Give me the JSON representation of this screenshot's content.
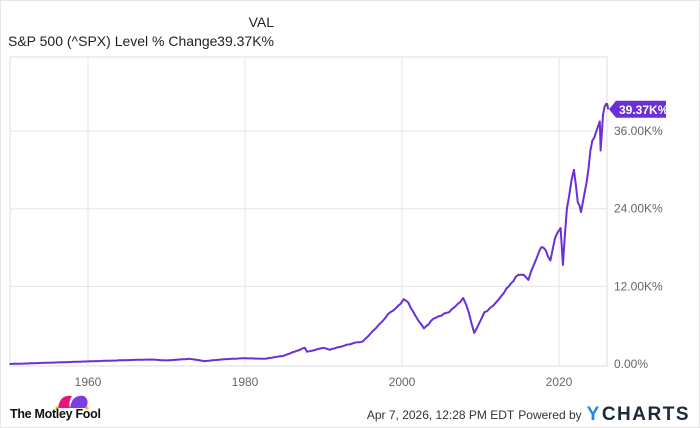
{
  "legend": {
    "column_header": "VAL",
    "series_name": "S&P 500 (^SPX) Level % Change",
    "series_value": "39.37K%"
  },
  "footer": {
    "brand": "The Motley Fool",
    "timestamp": "Apr 7, 2026, 12:28 PM EDT",
    "powered_by": "Powered by",
    "provider_y": "Y",
    "provider_rest": "CHARTS"
  },
  "colors": {
    "line": "#6a2fd6",
    "badge": "#6a2fd6",
    "grid": "#e5e5e5",
    "axis_text": "#666666"
  },
  "chart_data": {
    "type": "line",
    "title": "S&P 500 (^SPX) Level % Change",
    "xlabel": "",
    "ylabel": "",
    "x_ticks": [
      "1960",
      "1980",
      "2000",
      "2020"
    ],
    "y_ticks": [
      "0.00%",
      "12.00K%",
      "24.00K%",
      "36.00K%"
    ],
    "xlim": [
      1950,
      2026.3
    ],
    "ylim": [
      0,
      41500
    ],
    "grid": true,
    "legend_position": "top-left",
    "last_value_label": "39.37K%",
    "series": [
      {
        "name": "S&P 500 (^SPX) Level % Change",
        "x": [
          1950,
          1955,
          1960,
          1965,
          1968,
          1970,
          1973,
          1974.8,
          1977,
          1980,
          1982.5,
          1985,
          1987.6,
          1987.9,
          1990,
          1990.8,
          1993,
          1995,
          1997,
          1998.5,
          1999.5,
          2000.2,
          2000.8,
          2001.7,
          2002.8,
          2004,
          2006,
          2007.8,
          2008.5,
          2009.2,
          2010.5,
          2011.6,
          2013,
          2014.5,
          2015.5,
          2016.1,
          2017.5,
          2018,
          2018.9,
          2019.5,
          2020.2,
          2020.5,
          2021,
          2021.9,
          2022.4,
          2022.8,
          2023.5,
          2024,
          2024.5,
          2025.2,
          2025.3,
          2025.6,
          2026.0,
          2026.27
        ],
        "values": [
          0,
          200,
          400,
          600,
          700,
          550,
          800,
          450,
          700,
          900,
          800,
          1300,
          2500,
          1900,
          2500,
          2200,
          3000,
          3500,
          6000,
          8000,
          9000,
          10000,
          9500,
          7500,
          5500,
          7000,
          8000,
          10200,
          8000,
          4800,
          8000,
          9000,
          11000,
          13500,
          13800,
          13000,
          17500,
          18000,
          16000,
          19500,
          21000,
          15300,
          24000,
          30000,
          25000,
          23500,
          28000,
          33000,
          35000,
          37500,
          33000,
          38500,
          40200,
          39370
        ]
      }
    ]
  }
}
